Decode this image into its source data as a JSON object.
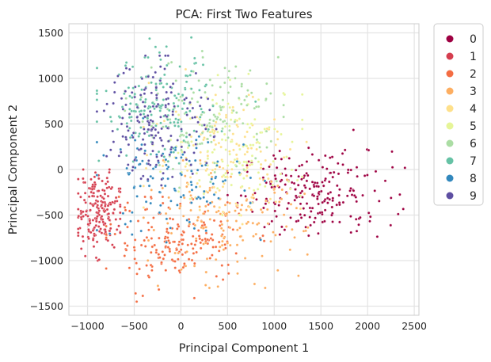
{
  "chart_data": {
    "type": "scatter",
    "title": "PCA: First Two Features",
    "xlabel": "Principal Component 1",
    "ylabel": "Principal Component 2",
    "xlim": [
      -1200,
      2550
    ],
    "ylim": [
      -1600,
      1600
    ],
    "x_ticks": [
      -1000,
      -500,
      0,
      500,
      1000,
      1500,
      2000,
      2500
    ],
    "y_ticks": [
      -1500,
      -1000,
      -500,
      0,
      500,
      1000,
      1500
    ],
    "x_tick_labels": [
      "−1000",
      "−500",
      "0",
      "500",
      "1000",
      "1500",
      "2000",
      "2500"
    ],
    "y_tick_labels": [
      "−1500",
      "−1000",
      "−500",
      "0",
      "500",
      "1000",
      "1500"
    ],
    "grid": true,
    "legend_position": "outside-right",
    "series": [
      {
        "name": "0",
        "color": "#9e0142",
        "count": 220,
        "center": [
          1450,
          -250
        ],
        "spread": [
          400,
          230
        ],
        "range_x": [
          500,
          2400
        ],
        "range_y": [
          -800,
          450
        ]
      },
      {
        "name": "1",
        "color": "#d53e4f",
        "count": 200,
        "center": [
          -900,
          -450
        ],
        "spread": [
          120,
          210
        ],
        "range_x": [
          -1100,
          -650
        ],
        "range_y": [
          -1000,
          0
        ]
      },
      {
        "name": "2",
        "color": "#f46d43",
        "count": 190,
        "center": [
          -50,
          -800
        ],
        "spread": [
          360,
          230
        ],
        "range_x": [
          -800,
          1000
        ],
        "range_y": [
          -1450,
          -300
        ]
      },
      {
        "name": "3",
        "color": "#fdae61",
        "count": 160,
        "center": [
          450,
          -600
        ],
        "spread": [
          430,
          280
        ],
        "range_x": [
          -400,
          1450
        ],
        "range_y": [
          -1300,
          100
        ]
      },
      {
        "name": "4",
        "color": "#fee08b",
        "count": 140,
        "center": [
          500,
          200
        ],
        "spread": [
          400,
          350
        ],
        "range_x": [
          -400,
          1400
        ],
        "range_y": [
          -600,
          1100
        ]
      },
      {
        "name": "5",
        "color": "#e6f598",
        "count": 130,
        "center": [
          600,
          250
        ],
        "spread": [
          380,
          330
        ],
        "range_x": [
          -300,
          1300
        ],
        "range_y": [
          -500,
          1050
        ]
      },
      {
        "name": "6",
        "color": "#abdda4",
        "count": 140,
        "center": [
          300,
          600
        ],
        "spread": [
          400,
          300
        ],
        "range_x": [
          -600,
          1100
        ],
        "range_y": [
          -200,
          1300
        ]
      },
      {
        "name": "7",
        "color": "#66c2a5",
        "count": 170,
        "center": [
          -250,
          650
        ],
        "spread": [
          300,
          280
        ],
        "range_x": [
          -900,
          800
        ],
        "range_y": [
          -100,
          1450
        ]
      },
      {
        "name": "8",
        "color": "#3288bd",
        "count": 120,
        "center": [
          -100,
          -150
        ],
        "spread": [
          400,
          300
        ],
        "range_x": [
          -900,
          900
        ],
        "range_y": [
          -800,
          700
        ]
      },
      {
        "name": "9",
        "color": "#5e4fa2",
        "count": 170,
        "center": [
          -250,
          550
        ],
        "spread": [
          280,
          330
        ],
        "range_x": [
          -900,
          700
        ],
        "range_y": [
          -200,
          1250
        ]
      }
    ]
  }
}
